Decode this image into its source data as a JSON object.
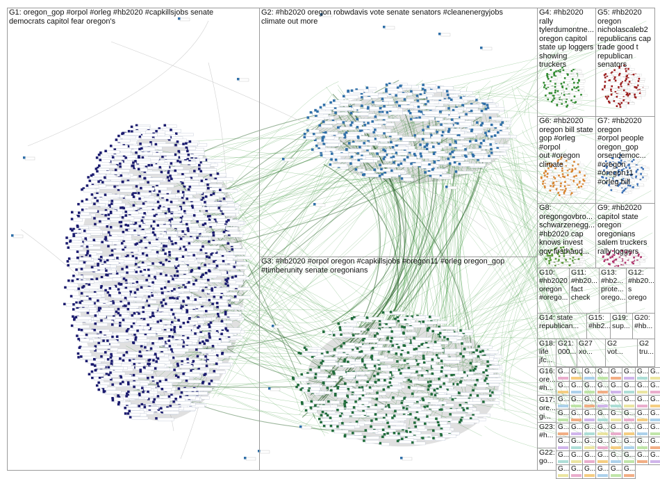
{
  "graph_title": "",
  "groups": [
    {
      "id": "g1",
      "label": "G1: oregon_gop #orpol #orleg #hb2020 #capkillsjobs senate\ndemocrats capitol fear oregon's",
      "color": "#1a1a6e"
    },
    {
      "id": "g2",
      "label": "G2: #hb2020 oregon robwdavis vote senate senators #cleanenergyjobs\nclimate out more",
      "color": "#2f6fa8"
    },
    {
      "id": "g3",
      "label": "G3: #hb2020 #orpol oregon #capkillsjobs #oregon11 #orleg oregon_gop\n#timberunity senate oregonians",
      "color": "#1f6b3a"
    },
    {
      "id": "g4",
      "label": "G4: #hb2020\nrally\ntylerdumontne...\noregon capitol\nstate up loggers\nshowing\ntruckers",
      "color": "#2f8a2f"
    },
    {
      "id": "g5",
      "label": "G5: #hb2020\noregon\nnicholascaleb2\nrepublicans cap\ntrade good t\nrepublican\nsenators",
      "color": "#9a1a1a"
    },
    {
      "id": "g6",
      "label": "G6: #hb2020\noregon bill state\ngop #orleg #orpol\nout #oregon\nclimate",
      "color": "#d9822b"
    },
    {
      "id": "g7",
      "label": "G7: #hb2020\noregon\n#orpol people\noregon_gop\norsendemoc...\n#oregon\n#oregon11\n#orleg bill",
      "color": "#3a6fb5"
    },
    {
      "id": "g8",
      "label": "G8:\noregongovbro...\nschwarzenegg...\n#hb2020 cap\nknows invest\ngov firsthand...",
      "color": "#5a9a3a"
    },
    {
      "id": "g9",
      "label": "G9: #hb2020\ncapitol state\noregon\noregonians\nsalem truckers\nrally loggers",
      "color": "#b0306a"
    },
    {
      "id": "g10",
      "label": "G10:\n#hb2020\noregon\n#orego...",
      "color": "#6a6a6a"
    },
    {
      "id": "g11",
      "label": "G11:\n#hb20...\nfact\ncheck",
      "color": "#6a6a6a"
    },
    {
      "id": "g13",
      "label": "G13:\n#hb2...\nprote...\norego...",
      "color": "#6a6a6a"
    },
    {
      "id": "g12",
      "label": "G12:\n#hb20...\ns\norego",
      "color": "#6a6a6a"
    },
    {
      "id": "g14",
      "label": "G14: state\nrepublican...",
      "color": "#6a6a6a"
    },
    {
      "id": "g15",
      "label": "G15:\n#hb2...",
      "color": "#6a6a6a"
    },
    {
      "id": "g19",
      "label": "G19:\nsup...",
      "color": "#6a6a6a"
    },
    {
      "id": "g20",
      "label": "G20:\n#hb...",
      "color": "#6a6a6a"
    },
    {
      "id": "g18",
      "label": "G18:\nlife\njfc...",
      "color": "#6a6a6a"
    },
    {
      "id": "g21",
      "label": "G21:\n000...",
      "color": "#6a6a6a"
    },
    {
      "id": "g27",
      "label": "G27\nxo...",
      "color": "#6a6a6a"
    },
    {
      "id": "g2x",
      "label": "G2\nvot...",
      "color": "#6a6a6a"
    },
    {
      "id": "g2y",
      "label": "G2\ntru...",
      "color": "#6a6a6a"
    },
    {
      "id": "g16",
      "label": "G16:\nore...\n#h...",
      "color": "#6a6a6a"
    },
    {
      "id": "g17",
      "label": "G17:\nore...\ngi...",
      "color": "#6a6a6a"
    },
    {
      "id": "g23",
      "label": "G23:\n#h...",
      "color": "#6a6a6a"
    },
    {
      "id": "g22",
      "label": "G22:\ngo...",
      "color": "#6a6a6a"
    }
  ],
  "mini_cells": [
    "G...",
    "G...",
    "G...",
    "G...",
    "G...",
    "G...",
    "G...",
    "G...",
    "G...",
    "G...",
    "G...",
    "G..."
  ],
  "colors": {
    "edge_green": "#3f9a3f",
    "edge_dark": "#1e5a1e",
    "g1_node": "#1a1a6e",
    "g2_node": "#2f6fa8",
    "g3_node": "#1f6b3a",
    "panel_border": "#9a9a9a"
  }
}
